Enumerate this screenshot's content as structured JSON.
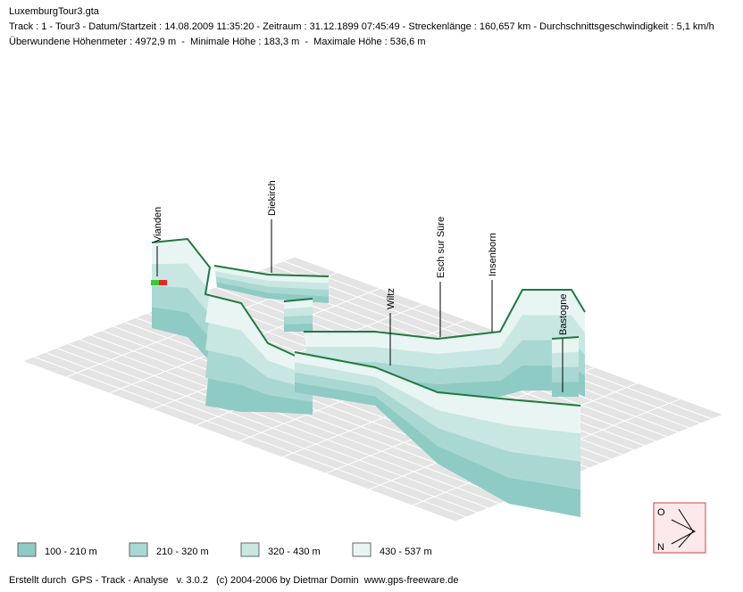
{
  "header": {
    "title": "LuxemburgTour3.gta",
    "track_line": "Track : 1 - Tour3 - Datum/Startzeit : 14.08.2009 11:35:20 - Zeitraum : 31.12.1899 07:45:49 - Streckenlänge : 160,657 km - Durchschnittsgeschwindigkeit : 5,1 km/h",
    "height_line": "Überwundene Höhenmeter : 4972,9 m  -  Minimale Höhe : 183,3 m  -  Maximale Höhe : 536,6 m"
  },
  "places": [
    "Vianden",
    "Diekirch",
    "Wiltz",
    "Esch sur Süre",
    "Insenborn",
    "Bastogne"
  ],
  "legend": [
    {
      "label": "100 - 210 m",
      "color": "#8fcbc5"
    },
    {
      "label": "210 - 320 m",
      "color": "#a9d8d2"
    },
    {
      "label": "320 - 430 m",
      "color": "#c8e7e2"
    },
    {
      "label": "430 - 537 m",
      "color": "#e8f5f3"
    }
  ],
  "compass": {
    "top": "O",
    "bottom": "N"
  },
  "footer": "Erstellt durch  GPS - Track - Analyse   v. 3.0.2   (c) 2004-2006 by Dietmar Domin  www.gps-freeware.de"
}
